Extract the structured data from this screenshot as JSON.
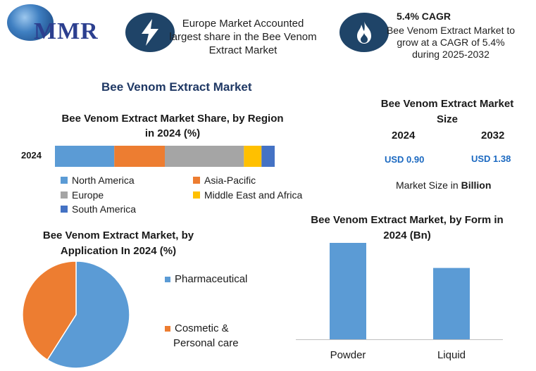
{
  "header": {
    "logo_text": "MMR",
    "badge1": {
      "icon": "lightning-bolt-icon",
      "lines": [
        "Europe Market Accounted",
        "largest share in the Bee Venom",
        "Extract Market"
      ]
    },
    "badge2": {
      "icon": "flame-icon",
      "title": "5.4% CAGR",
      "lines": [
        "Bee Venom Extract Market to",
        "grow at a CAGR of 5.4%",
        "during 2025-2032"
      ]
    }
  },
  "main_title": "Bee Venom Extract Market",
  "market_size": {
    "title_line1": "Bee Venom Extract Market",
    "title_line2": "Size",
    "year1": "2024",
    "year2": "2032",
    "value1": "USD 0.90",
    "value2": "USD 1.38",
    "note_prefix": "Market Size in ",
    "note_bold": "Billion"
  },
  "colors": {
    "north_america": "#5b9bd5",
    "asia_pacific": "#ed7d31",
    "europe": "#a5a5a5",
    "middle_east_africa": "#ffc000",
    "south_america": "#4472c4",
    "accent": "#1b69c1"
  },
  "chart_data": [
    {
      "type": "bar",
      "orientation": "horizontal-stacked",
      "title_line1": "Bee Venom Extract Market Share, by Region",
      "title_line2": "in 2024 (%)",
      "categories": [
        "2024"
      ],
      "series": [
        {
          "name": "North America",
          "values": [
            27
          ],
          "color": "#5b9bd5"
        },
        {
          "name": "Asia-Pacific",
          "values": [
            23
          ],
          "color": "#ed7d31"
        },
        {
          "name": "Europe",
          "values": [
            36
          ],
          "color": "#a5a5a5"
        },
        {
          "name": "Middle East and Africa",
          "values": [
            8
          ],
          "color": "#ffc000"
        },
        {
          "name": "South America",
          "values": [
            6
          ],
          "color": "#4472c4"
        }
      ],
      "legend_position": "bottom"
    },
    {
      "type": "pie",
      "title_line1": "Bee Venom Extract Market, by",
      "title_line2": "Application In 2024 (%)",
      "slices": [
        {
          "name": "Pharmaceutical",
          "value": 59,
          "color": "#5b9bd5"
        },
        {
          "name": "Cosmetic & Personal care",
          "label_line1": "Cosmetic &",
          "label_line2": "Personal care",
          "value": 41,
          "color": "#ed7d31"
        }
      ],
      "legend_position": "right"
    },
    {
      "type": "bar",
      "title_line1": "Bee Venom Extract Market, by Form in",
      "title_line2": "2024 (Bn)",
      "categories": [
        "Powder",
        "Liquid"
      ],
      "values": [
        0.5,
        0.37
      ],
      "ylim": [
        0,
        0.5
      ],
      "color": "#5b9bd5"
    }
  ]
}
